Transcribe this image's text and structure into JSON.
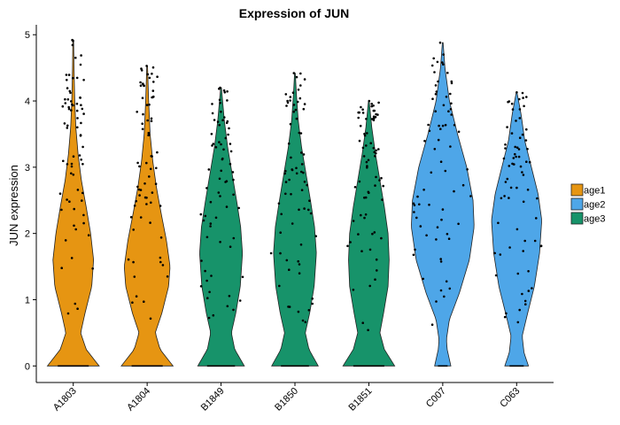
{
  "chart_data": {
    "type": "violin",
    "title": "Expression of JUN",
    "xlabel": "",
    "ylabel": "JUN expression",
    "ylim": [
      -0.25,
      5.15
    ],
    "yticks": [
      0,
      1,
      2,
      3,
      4,
      5
    ],
    "grid": false,
    "legend_position": "right",
    "categories": [
      "A1803",
      "A1804",
      "B1849",
      "B1850",
      "B1851",
      "C007",
      "C063"
    ],
    "groups": [
      {
        "name": "age1",
        "color": "#e69512"
      },
      {
        "name": "age2",
        "color": "#4ea6e8"
      },
      {
        "name": "age3",
        "color": "#17936a"
      }
    ],
    "violins": [
      {
        "category": "A1803",
        "group": "age1",
        "max": 4.92,
        "profile": [
          [
            0,
            0.7
          ],
          [
            0.25,
            0.35
          ],
          [
            0.5,
            0.2
          ],
          [
            0.8,
            0.32
          ],
          [
            1.2,
            0.5
          ],
          [
            1.6,
            0.55
          ],
          [
            2.0,
            0.47
          ],
          [
            2.4,
            0.35
          ],
          [
            2.8,
            0.22
          ],
          [
            3.2,
            0.13
          ],
          [
            3.6,
            0.07
          ],
          [
            4.0,
            0.04
          ],
          [
            4.5,
            0.02
          ],
          [
            4.92,
            0.01
          ]
        ]
      },
      {
        "category": "A1804",
        "group": "age1",
        "max": 4.53,
        "profile": [
          [
            0,
            0.7
          ],
          [
            0.25,
            0.35
          ],
          [
            0.5,
            0.22
          ],
          [
            0.8,
            0.4
          ],
          [
            1.2,
            0.58
          ],
          [
            1.5,
            0.62
          ],
          [
            1.9,
            0.52
          ],
          [
            2.3,
            0.38
          ],
          [
            2.7,
            0.25
          ],
          [
            3.1,
            0.15
          ],
          [
            3.5,
            0.08
          ],
          [
            4.0,
            0.04
          ],
          [
            4.53,
            0.01
          ]
        ]
      },
      {
        "category": "B1849",
        "group": "age3",
        "max": 4.2,
        "profile": [
          [
            0,
            0.63
          ],
          [
            0.25,
            0.37
          ],
          [
            0.5,
            0.28
          ],
          [
            0.8,
            0.4
          ],
          [
            1.2,
            0.52
          ],
          [
            1.7,
            0.58
          ],
          [
            2.1,
            0.53
          ],
          [
            2.5,
            0.42
          ],
          [
            2.9,
            0.3
          ],
          [
            3.3,
            0.18
          ],
          [
            3.7,
            0.09
          ],
          [
            4.2,
            0.01
          ]
        ]
      },
      {
        "category": "B1850",
        "group": "age3",
        "max": 4.42,
        "profile": [
          [
            0,
            0.63
          ],
          [
            0.25,
            0.38
          ],
          [
            0.5,
            0.28
          ],
          [
            0.8,
            0.4
          ],
          [
            1.2,
            0.52
          ],
          [
            1.7,
            0.58
          ],
          [
            2.1,
            0.53
          ],
          [
            2.5,
            0.42
          ],
          [
            2.9,
            0.3
          ],
          [
            3.3,
            0.18
          ],
          [
            3.7,
            0.09
          ],
          [
            4.1,
            0.04
          ],
          [
            4.42,
            0.01
          ]
        ]
      },
      {
        "category": "B1851",
        "group": "age3",
        "max": 4.0,
        "profile": [
          [
            0,
            0.7
          ],
          [
            0.25,
            0.42
          ],
          [
            0.5,
            0.3
          ],
          [
            0.8,
            0.4
          ],
          [
            1.2,
            0.52
          ],
          [
            1.6,
            0.55
          ],
          [
            2.0,
            0.52
          ],
          [
            2.4,
            0.42
          ],
          [
            2.8,
            0.3
          ],
          [
            3.2,
            0.18
          ],
          [
            3.6,
            0.08
          ],
          [
            4.0,
            0.01
          ]
        ]
      },
      {
        "category": "C007",
        "group": "age2",
        "max": 4.88,
        "profile": [
          [
            0,
            0.22
          ],
          [
            0.25,
            0.12
          ],
          [
            0.4,
            0.1
          ],
          [
            0.7,
            0.18
          ],
          [
            1.1,
            0.45
          ],
          [
            1.6,
            0.72
          ],
          [
            2.1,
            0.85
          ],
          [
            2.5,
            0.82
          ],
          [
            3.0,
            0.65
          ],
          [
            3.5,
            0.4
          ],
          [
            4.0,
            0.18
          ],
          [
            4.5,
            0.06
          ],
          [
            4.88,
            0.01
          ]
        ]
      },
      {
        "category": "C063",
        "group": "age2",
        "max": 4.13,
        "profile": [
          [
            0,
            0.32
          ],
          [
            0.2,
            0.2
          ],
          [
            0.45,
            0.15
          ],
          [
            0.8,
            0.3
          ],
          [
            1.2,
            0.48
          ],
          [
            1.7,
            0.62
          ],
          [
            2.2,
            0.68
          ],
          [
            2.6,
            0.58
          ],
          [
            3.0,
            0.4
          ],
          [
            3.4,
            0.22
          ],
          [
            3.8,
            0.12
          ],
          [
            4.13,
            0.01
          ]
        ]
      }
    ]
  }
}
